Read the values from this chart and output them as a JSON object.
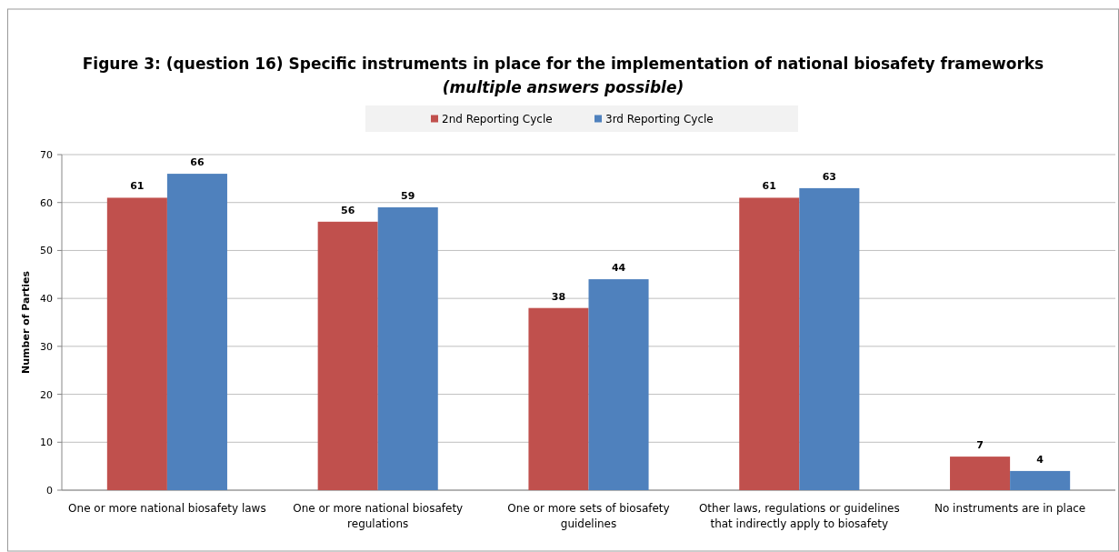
{
  "chart_data": {
    "type": "bar",
    "title": "Figure 3: (question 16) Specific instruments in place for the implementation of national biosafety frameworks",
    "subtitle": "(multiple answers possible)",
    "ylabel": "Number of Parties",
    "categories": [
      "One or more national biosafety laws",
      "One or more national biosafety regulations",
      "One or more sets of biosafety guidelines",
      "Other laws, regulations or guidelines that indirectly apply to biosafety",
      "No instruments are in place"
    ],
    "series": [
      {
        "name": "2nd Reporting Cycle",
        "color": "#c0504d",
        "values": [
          61,
          56,
          38,
          61,
          7
        ]
      },
      {
        "name": "3rd Reporting Cycle",
        "color": "#4f81bd",
        "values": [
          66,
          59,
          44,
          63,
          4
        ]
      }
    ],
    "ylim": [
      0,
      70
    ],
    "yticks": [
      0,
      10,
      20,
      30,
      40,
      50,
      60,
      70
    ],
    "grid": "y",
    "legend": "top",
    "data_labels": true
  }
}
